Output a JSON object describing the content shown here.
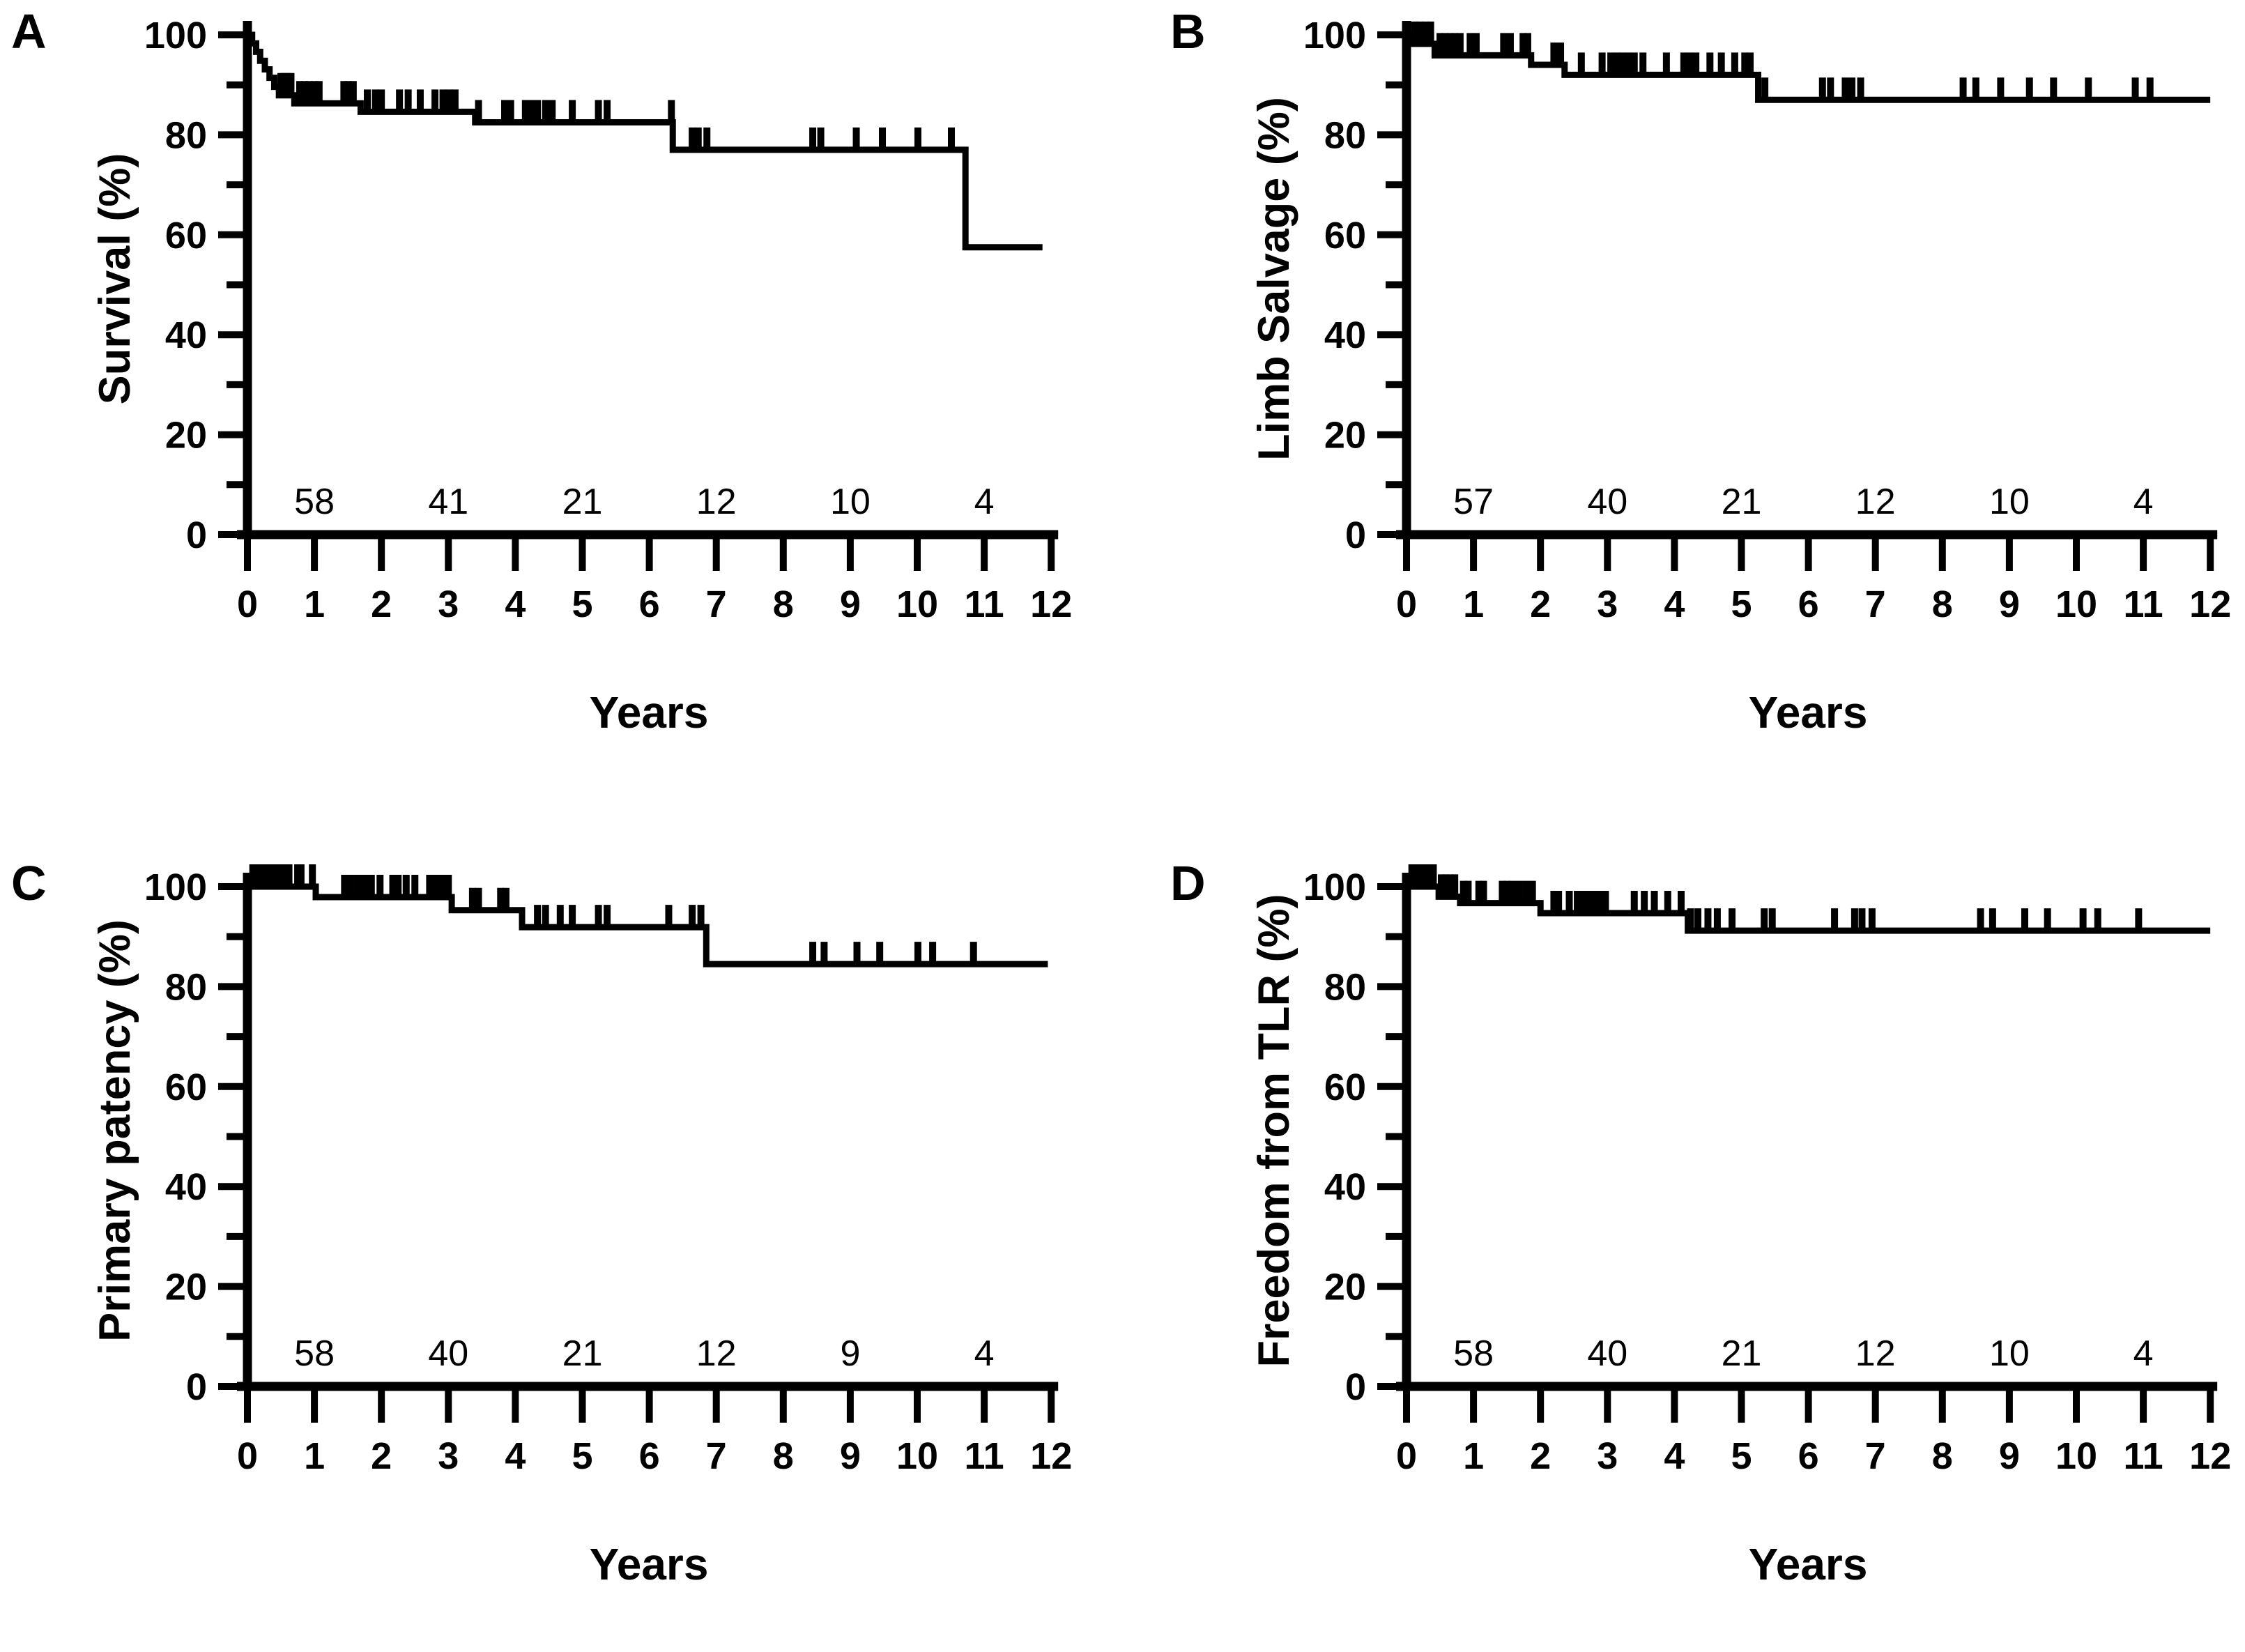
{
  "figure": {
    "background": "#ffffff",
    "curve_color": "#000000",
    "description": "Four-panel Kaplan-Meier analysis figure"
  },
  "chart_data": [
    {
      "type": "line",
      "step": true,
      "panel_letter": "A",
      "title": "Survival",
      "ylabel": "Survival (%)",
      "xlabel": "Years",
      "xlim": [
        0,
        12
      ],
      "ylim": [
        0,
        100
      ],
      "x_ticks": [
        0,
        1,
        2,
        3,
        4,
        5,
        6,
        7,
        8,
        9,
        10,
        11,
        12
      ],
      "y_ticks_major": [
        0,
        20,
        40,
        60,
        80,
        100
      ],
      "y_ticks_minor": [
        10,
        30,
        50,
        70,
        90
      ],
      "grid": false,
      "legend": "none",
      "line_color": "#000000",
      "series": [
        {
          "name": "Survival",
          "points": [
            [
              0,
              100
            ],
            [
              0.07,
              98.3
            ],
            [
              0.13,
              96.6
            ],
            [
              0.19,
              94.8
            ],
            [
              0.26,
              93.1
            ],
            [
              0.33,
              91.4
            ],
            [
              0.4,
              89.6
            ],
            [
              0.47,
              87.9
            ],
            [
              0.7,
              86.3
            ],
            [
              1.69,
              84.6
            ],
            [
              3.4,
              82.5
            ],
            [
              6.35,
              77.0
            ],
            [
              10.72,
              57.5
            ],
            [
              11.87,
              57.5
            ]
          ]
        }
      ],
      "censor_marks": [
        [
          0.5,
          87.9
        ],
        [
          0.55,
          87.9
        ],
        [
          0.6,
          87.9
        ],
        [
          0.65,
          87.9
        ],
        [
          0.78,
          86.3
        ],
        [
          0.85,
          86.3
        ],
        [
          0.92,
          86.3
        ],
        [
          1.0,
          86.3
        ],
        [
          1.07,
          86.3
        ],
        [
          1.44,
          86.3
        ],
        [
          1.51,
          86.3
        ],
        [
          1.58,
          86.3
        ],
        [
          1.79,
          84.6
        ],
        [
          1.91,
          84.6
        ],
        [
          2.0,
          84.6
        ],
        [
          2.27,
          84.6
        ],
        [
          2.4,
          84.6
        ],
        [
          2.58,
          84.6
        ],
        [
          2.8,
          84.6
        ],
        [
          2.92,
          84.6
        ],
        [
          3.01,
          84.6
        ],
        [
          3.1,
          84.6
        ],
        [
          3.45,
          82.5
        ],
        [
          3.84,
          82.5
        ],
        [
          3.93,
          82.5
        ],
        [
          4.15,
          82.5
        ],
        [
          4.23,
          82.5
        ],
        [
          4.33,
          82.5
        ],
        [
          4.45,
          82.5
        ],
        [
          4.55,
          82.5
        ],
        [
          4.85,
          82.5
        ],
        [
          5.24,
          82.5
        ],
        [
          5.37,
          82.5
        ],
        [
          6.33,
          82.5
        ],
        [
          6.64,
          77.0
        ],
        [
          6.73,
          77.0
        ],
        [
          6.86,
          77.0
        ],
        [
          8.44,
          77.0
        ],
        [
          8.56,
          77.0
        ],
        [
          9.09,
          77.0
        ],
        [
          9.48,
          77.0
        ],
        [
          10.01,
          77.0
        ],
        [
          10.51,
          77.0
        ]
      ],
      "at_risk": {
        "times": [
          1,
          3,
          5,
          7,
          9,
          11
        ],
        "counts": [
          58,
          41,
          21,
          12,
          10,
          4
        ]
      }
    },
    {
      "type": "line",
      "step": true,
      "panel_letter": "B",
      "title": "Limb Salvage",
      "ylabel": "Limb Salvage (%)",
      "xlabel": "Years",
      "xlim": [
        0,
        12
      ],
      "ylim": [
        0,
        100
      ],
      "x_ticks": [
        0,
        1,
        2,
        3,
        4,
        5,
        6,
        7,
        8,
        9,
        10,
        11,
        12
      ],
      "y_ticks_major": [
        0,
        20,
        40,
        60,
        80,
        100
      ],
      "y_ticks_minor": [
        10,
        30,
        50,
        70,
        90
      ],
      "grid": false,
      "legend": "none",
      "line_color": "#000000",
      "series": [
        {
          "name": "Limb Salvage",
          "points": [
            [
              0,
              100
            ],
            [
              0.08,
              98.2
            ],
            [
              0.42,
              95.9
            ],
            [
              1.86,
              94.0
            ],
            [
              2.36,
              92.0
            ],
            [
              5.25,
              87.0
            ],
            [
              12,
              87.0
            ]
          ]
        }
      ],
      "censor_marks": [
        [
          0.12,
          98.2
        ],
        [
          0.2,
          98.2
        ],
        [
          0.28,
          98.2
        ],
        [
          0.36,
          98.2
        ],
        [
          0.5,
          95.9
        ],
        [
          0.57,
          95.9
        ],
        [
          0.65,
          95.9
        ],
        [
          0.72,
          95.9
        ],
        [
          0.8,
          95.9
        ],
        [
          0.95,
          95.9
        ],
        [
          1.04,
          95.9
        ],
        [
          1.45,
          95.9
        ],
        [
          1.55,
          95.9
        ],
        [
          1.74,
          95.9
        ],
        [
          1.81,
          95.9
        ],
        [
          2.2,
          94.0
        ],
        [
          2.3,
          94.0
        ],
        [
          2.61,
          92.0
        ],
        [
          2.92,
          92.0
        ],
        [
          3.05,
          92.0
        ],
        [
          3.14,
          92.0
        ],
        [
          3.22,
          92.0
        ],
        [
          3.31,
          92.0
        ],
        [
          3.4,
          92.0
        ],
        [
          3.53,
          92.0
        ],
        [
          3.88,
          92.0
        ],
        [
          4.14,
          92.0
        ],
        [
          4.23,
          92.0
        ],
        [
          4.32,
          92.0
        ],
        [
          4.53,
          92.0
        ],
        [
          4.7,
          92.0
        ],
        [
          4.9,
          92.0
        ],
        [
          5.05,
          92.0
        ],
        [
          5.13,
          92.0
        ],
        [
          5.35,
          87.0
        ],
        [
          6.21,
          87.0
        ],
        [
          6.33,
          87.0
        ],
        [
          6.55,
          87.0
        ],
        [
          6.65,
          87.0
        ],
        [
          6.78,
          87.0
        ],
        [
          8.31,
          87.0
        ],
        [
          8.5,
          87.0
        ],
        [
          8.87,
          87.0
        ],
        [
          9.3,
          87.0
        ],
        [
          9.66,
          87.0
        ],
        [
          10.18,
          87.0
        ],
        [
          10.88,
          87.0
        ],
        [
          11.1,
          87.0
        ]
      ],
      "at_risk": {
        "times": [
          1,
          3,
          5,
          7,
          9,
          11
        ],
        "counts": [
          57,
          40,
          21,
          12,
          10,
          4
        ]
      }
    },
    {
      "type": "line",
      "step": true,
      "panel_letter": "C",
      "title": "Primary patency",
      "ylabel": "Primary patency (%)",
      "xlabel": "Years",
      "xlim": [
        0,
        12
      ],
      "ylim": [
        0,
        100
      ],
      "x_ticks": [
        0,
        1,
        2,
        3,
        4,
        5,
        6,
        7,
        8,
        9,
        10,
        11,
        12
      ],
      "y_ticks_major": [
        0,
        20,
        40,
        60,
        80,
        100
      ],
      "y_ticks_minor": [
        10,
        30,
        50,
        70,
        90
      ],
      "grid": false,
      "legend": "none",
      "line_color": "#000000",
      "series": [
        {
          "name": "Primary patency",
          "points": [
            [
              0,
              100
            ],
            [
              1.02,
              97.9
            ],
            [
              3.05,
              95.3
            ],
            [
              4.1,
              91.9
            ],
            [
              6.85,
              84.5
            ],
            [
              11.95,
              84.5
            ]
          ]
        }
      ],
      "censor_marks": [
        [
          0.08,
          100
        ],
        [
          0.14,
          100
        ],
        [
          0.2,
          100
        ],
        [
          0.26,
          100
        ],
        [
          0.32,
          100
        ],
        [
          0.38,
          100
        ],
        [
          0.44,
          100
        ],
        [
          0.5,
          100
        ],
        [
          0.56,
          100
        ],
        [
          0.62,
          100
        ],
        [
          0.75,
          100
        ],
        [
          0.8,
          100
        ],
        [
          0.97,
          100
        ],
        [
          1.45,
          97.9
        ],
        [
          1.55,
          97.9
        ],
        [
          1.65,
          97.9
        ],
        [
          1.75,
          97.9
        ],
        [
          1.85,
          97.9
        ],
        [
          1.98,
          97.9
        ],
        [
          2.17,
          97.9
        ],
        [
          2.25,
          97.9
        ],
        [
          2.37,
          97.9
        ],
        [
          2.5,
          97.9
        ],
        [
          2.72,
          97.9
        ],
        [
          2.8,
          97.9
        ],
        [
          2.9,
          97.9
        ],
        [
          3.0,
          97.9
        ],
        [
          3.36,
          95.3
        ],
        [
          3.45,
          95.3
        ],
        [
          3.78,
          95.3
        ],
        [
          3.86,
          95.3
        ],
        [
          4.33,
          91.9
        ],
        [
          4.45,
          91.9
        ],
        [
          4.67,
          91.9
        ],
        [
          4.85,
          91.9
        ],
        [
          5.24,
          91.9
        ],
        [
          5.37,
          91.9
        ],
        [
          6.29,
          91.9
        ],
        [
          6.64,
          91.9
        ],
        [
          6.77,
          91.9
        ],
        [
          8.44,
          84.5
        ],
        [
          8.61,
          84.5
        ],
        [
          9.1,
          84.5
        ],
        [
          9.44,
          84.5
        ],
        [
          10.01,
          84.5
        ],
        [
          10.23,
          84.5
        ],
        [
          10.84,
          84.5
        ]
      ],
      "at_risk": {
        "times": [
          1,
          3,
          5,
          7,
          9,
          11
        ],
        "counts": [
          58,
          40,
          21,
          12,
          9,
          4
        ]
      }
    },
    {
      "type": "line",
      "step": true,
      "panel_letter": "D",
      "title": "Freedom from TLR",
      "ylabel": "Freedom from TLR (%)",
      "xlabel": "Years",
      "xlim": [
        0,
        12
      ],
      "ylim": [
        0,
        100
      ],
      "x_ticks": [
        0,
        1,
        2,
        3,
        4,
        5,
        6,
        7,
        8,
        9,
        10,
        11,
        12
      ],
      "y_ticks_major": [
        0,
        20,
        40,
        60,
        80,
        100
      ],
      "y_ticks_minor": [
        10,
        30,
        50,
        70,
        90
      ],
      "grid": false,
      "legend": "none",
      "line_color": "#000000",
      "series": [
        {
          "name": "Freedom from TLR",
          "points": [
            [
              0,
              100
            ],
            [
              0.48,
              98.0
            ],
            [
              0.8,
              96.7
            ],
            [
              2.0,
              94.7
            ],
            [
              4.2,
              91.2
            ],
            [
              12,
              91.2
            ]
          ]
        }
      ],
      "censor_marks": [
        [
          0.08,
          100
        ],
        [
          0.14,
          100
        ],
        [
          0.2,
          100
        ],
        [
          0.26,
          100
        ],
        [
          0.32,
          100
        ],
        [
          0.4,
          100
        ],
        [
          0.52,
          98.0
        ],
        [
          0.58,
          98.0
        ],
        [
          0.65,
          98.0
        ],
        [
          0.72,
          98.0
        ],
        [
          0.85,
          96.7
        ],
        [
          0.92,
          96.7
        ],
        [
          1.08,
          96.7
        ],
        [
          1.15,
          96.7
        ],
        [
          1.43,
          96.7
        ],
        [
          1.5,
          96.7
        ],
        [
          1.58,
          96.7
        ],
        [
          1.68,
          96.7
        ],
        [
          1.78,
          96.7
        ],
        [
          1.88,
          96.7
        ],
        [
          2.2,
          94.7
        ],
        [
          2.27,
          94.7
        ],
        [
          2.43,
          94.7
        ],
        [
          2.55,
          94.7
        ],
        [
          2.65,
          94.7
        ],
        [
          2.72,
          94.7
        ],
        [
          2.8,
          94.7
        ],
        [
          2.88,
          94.7
        ],
        [
          2.97,
          94.7
        ],
        [
          3.4,
          94.7
        ],
        [
          3.55,
          94.7
        ],
        [
          3.7,
          94.7
        ],
        [
          3.9,
          94.7
        ],
        [
          4.1,
          94.7
        ],
        [
          4.24,
          91.2
        ],
        [
          4.35,
          91.2
        ],
        [
          4.5,
          91.2
        ],
        [
          4.64,
          91.2
        ],
        [
          4.86,
          91.2
        ],
        [
          5.34,
          91.2
        ],
        [
          5.46,
          91.2
        ],
        [
          6.39,
          91.2
        ],
        [
          6.69,
          91.2
        ],
        [
          6.8,
          91.2
        ],
        [
          6.95,
          91.2
        ],
        [
          8.57,
          91.2
        ],
        [
          8.75,
          91.2
        ],
        [
          9.23,
          91.2
        ],
        [
          9.57,
          91.2
        ],
        [
          10.1,
          91.2
        ],
        [
          10.32,
          91.2
        ],
        [
          10.93,
          91.2
        ]
      ],
      "at_risk": {
        "times": [
          1,
          3,
          5,
          7,
          9,
          11
        ],
        "counts": [
          58,
          40,
          21,
          12,
          10,
          4
        ]
      }
    }
  ]
}
